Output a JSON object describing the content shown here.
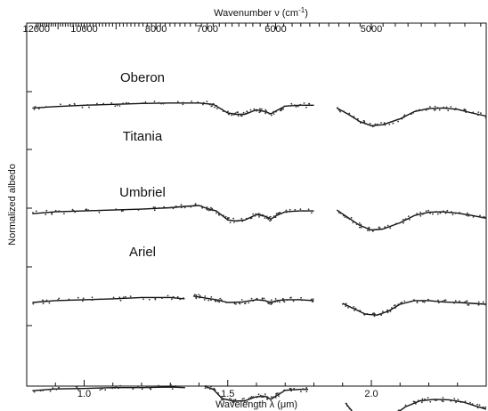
{
  "chart_data": {
    "type": "scatter",
    "title": "",
    "xlabel": "Wavelength λ (μm)",
    "top_xlabel_main": "Wavenumber ν (cm",
    "top_xlabel_exp": "-1",
    "top_xlabel_close": ")",
    "ylabel": "Normalized albedo",
    "xlim": [
      0.8,
      2.4
    ],
    "x_ticks": [
      "1.0",
      "1.5",
      "2.0"
    ],
    "top_ticks": [
      "12000",
      "10000",
      "8000",
      "7000",
      "6000",
      "5000"
    ],
    "y_ticklabels_shown": false,
    "grid": false,
    "legend": "none",
    "series": [
      {
        "name": "Oberon",
        "segments": [
          [
            [
              0.82,
              0.36
            ],
            [
              0.9,
              0.33
            ],
            [
              1.0,
              0.3
            ],
            [
              1.1,
              0.28
            ],
            [
              1.2,
              0.26
            ],
            [
              1.3,
              0.25
            ],
            [
              1.4,
              0.25
            ],
            [
              1.45,
              0.28
            ],
            [
              1.5,
              0.47
            ],
            [
              1.53,
              0.5
            ],
            [
              1.56,
              0.5
            ],
            [
              1.6,
              0.4
            ],
            [
              1.63,
              0.44
            ],
            [
              1.65,
              0.49
            ],
            [
              1.67,
              0.42
            ],
            [
              1.7,
              0.32
            ],
            [
              1.75,
              0.3
            ],
            [
              1.8,
              0.3
            ]
          ],
          [
            [
              1.88,
              0.36
            ],
            [
              1.92,
              0.5
            ],
            [
              1.96,
              0.66
            ],
            [
              2.0,
              0.75
            ],
            [
              2.04,
              0.73
            ],
            [
              2.1,
              0.6
            ],
            [
              2.15,
              0.44
            ],
            [
              2.2,
              0.37
            ],
            [
              2.25,
              0.36
            ],
            [
              2.3,
              0.39
            ],
            [
              2.35,
              0.47
            ],
            [
              2.4,
              0.54
            ]
          ]
        ]
      },
      {
        "name": "Titania",
        "segments": [
          [
            [
              0.82,
              1.16
            ],
            [
              0.9,
              1.12
            ],
            [
              1.0,
              1.1
            ],
            [
              1.1,
              1.08
            ],
            [
              1.2,
              1.06
            ],
            [
              1.3,
              1.03
            ],
            [
              1.35,
              1.0
            ],
            [
              1.4,
              0.98
            ],
            [
              1.43,
              1.05
            ],
            [
              1.46,
              1.1
            ],
            [
              1.5,
              1.3
            ],
            [
              1.53,
              1.32
            ],
            [
              1.56,
              1.3
            ],
            [
              1.6,
              1.18
            ],
            [
              1.63,
              1.22
            ],
            [
              1.65,
              1.28
            ],
            [
              1.67,
              1.2
            ],
            [
              1.7,
              1.12
            ],
            [
              1.75,
              1.1
            ],
            [
              1.8,
              1.1
            ]
          ],
          [
            [
              1.88,
              1.08
            ],
            [
              1.92,
              1.25
            ],
            [
              1.96,
              1.42
            ],
            [
              2.0,
              1.52
            ],
            [
              2.04,
              1.5
            ],
            [
              2.1,
              1.36
            ],
            [
              2.15,
              1.2
            ],
            [
              2.2,
              1.13
            ],
            [
              2.25,
              1.12
            ],
            [
              2.3,
              1.15
            ],
            [
              2.35,
              1.2
            ],
            [
              2.4,
              1.26
            ]
          ]
        ]
      },
      {
        "name": "Umbriel",
        "segments": [
          [
            [
              0.82,
              1.96
            ],
            [
              0.9,
              1.92
            ],
            [
              1.0,
              1.9
            ],
            [
              1.1,
              1.88
            ],
            [
              1.2,
              1.85
            ],
            [
              1.3,
              1.85
            ],
            [
              1.35,
              1.88
            ]
          ],
          [
            [
              1.38,
              1.82
            ],
            [
              1.4,
              1.84
            ],
            [
              1.43,
              1.87
            ],
            [
              1.46,
              1.9
            ],
            [
              1.5,
              1.96
            ],
            [
              1.55,
              1.95
            ],
            [
              1.6,
              1.9
            ],
            [
              1.63,
              1.92
            ],
            [
              1.65,
              1.96
            ],
            [
              1.67,
              1.92
            ],
            [
              1.7,
              1.9
            ],
            [
              1.75,
              1.9
            ],
            [
              1.8,
              1.92
            ]
          ],
          [
            [
              1.9,
              1.98
            ],
            [
              1.94,
              2.1
            ],
            [
              1.98,
              2.22
            ],
            [
              2.02,
              2.24
            ],
            [
              2.06,
              2.15
            ],
            [
              2.1,
              2.0
            ],
            [
              2.15,
              1.92
            ],
            [
              2.2,
              1.92
            ],
            [
              2.25,
              1.95
            ],
            [
              2.3,
              1.96
            ],
            [
              2.35,
              1.98
            ],
            [
              2.4,
              2.0
            ]
          ]
        ]
      },
      {
        "name": "Ariel",
        "segments": [
          [
            [
              0.82,
              2.73
            ],
            [
              0.9,
              2.69
            ],
            [
              1.0,
              2.68
            ],
            [
              1.1,
              2.66
            ],
            [
              1.2,
              2.66
            ],
            [
              1.3,
              2.65
            ],
            [
              1.35,
              2.66
            ]
          ],
          [
            [
              1.42,
              2.63
            ],
            [
              1.45,
              2.7
            ],
            [
              1.48,
              2.9
            ],
            [
              1.52,
              2.96
            ],
            [
              1.56,
              2.95
            ],
            [
              1.6,
              2.86
            ],
            [
              1.63,
              2.85
            ],
            [
              1.65,
              2.92
            ],
            [
              1.67,
              2.84
            ],
            [
              1.7,
              2.72
            ],
            [
              1.75,
              2.7
            ],
            [
              1.78,
              2.7
            ]
          ],
          [
            [
              1.91,
              3.0
            ],
            [
              1.95,
              3.32
            ],
            [
              1.99,
              3.42
            ],
            [
              2.03,
              3.44
            ],
            [
              2.07,
              3.3
            ],
            [
              2.12,
              3.08
            ],
            [
              2.17,
              2.95
            ],
            [
              2.22,
              2.92
            ],
            [
              2.27,
              2.93
            ],
            [
              2.32,
              2.98
            ],
            [
              2.37,
              3.08
            ],
            [
              2.4,
              3.14
            ]
          ]
        ]
      }
    ]
  }
}
